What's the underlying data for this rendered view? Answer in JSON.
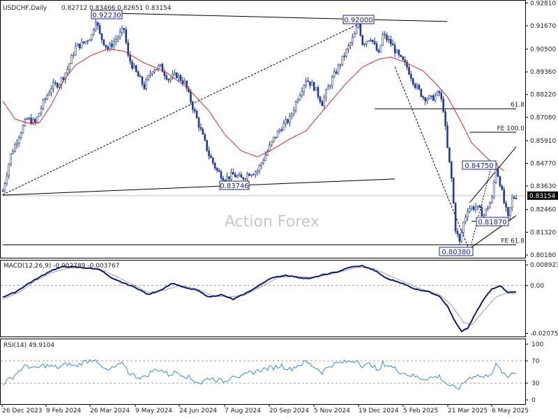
{
  "header": {
    "symbol": "USDCHF,Daily",
    "ohlc": "0.82712 0.83466 0.82651 0.83154"
  },
  "watermark": "Action Forex",
  "colors": {
    "candle": "#1f3a93",
    "ma": "#d42a2a",
    "macd": "#0d1a70",
    "signal": "#9e9e9e",
    "rsi": "#3f8ad6",
    "label_box": "#1a237e"
  },
  "chart_data": [
    {
      "type": "candlestick",
      "name": "price",
      "ylim": [
        0.8018,
        0.9282
      ],
      "y_ticks": [
        "0.92810",
        "0.91670",
        "0.90500",
        "0.89360",
        "0.88220",
        "0.87080",
        "0.85910",
        "0.84770",
        "0.83630",
        "0.82460",
        "0.81320",
        "0.80180"
      ],
      "x_ticks": [
        "26 Dec 2023",
        "9 Feb 2024",
        "26 Mar 2024",
        "9 May 2024",
        "24 Jun 2024",
        "7 Aug 2024",
        "20 Sep 2024",
        "5 Nov 2024",
        "19 Dec 2024",
        "5 Feb 2025",
        "21 Mar 2025",
        "6 May 2025"
      ],
      "last_price": "0.83154",
      "close_path": [
        [
          0,
          0.834
        ],
        [
          4,
          0.852
        ],
        [
          8,
          0.862
        ],
        [
          12,
          0.87
        ],
        [
          16,
          0.868
        ],
        [
          20,
          0.878
        ],
        [
          24,
          0.886
        ],
        [
          28,
          0.888
        ],
        [
          32,
          0.895
        ],
        [
          36,
          0.906
        ],
        [
          40,
          0.908
        ],
        [
          44,
          0.912
        ],
        [
          46,
          0.92
        ],
        [
          48,
          0.912
        ],
        [
          52,
          0.905
        ],
        [
          56,
          0.91
        ],
        [
          60,
          0.915
        ],
        [
          62,
          0.901
        ],
        [
          66,
          0.893
        ],
        [
          70,
          0.886
        ],
        [
          74,
          0.895
        ],
        [
          78,
          0.896
        ],
        [
          82,
          0.89
        ],
        [
          86,
          0.892
        ],
        [
          90,
          0.888
        ],
        [
          94,
          0.876
        ],
        [
          98,
          0.864
        ],
        [
          102,
          0.852
        ],
        [
          106,
          0.844
        ],
        [
          110,
          0.84
        ],
        [
          114,
          0.842
        ],
        [
          118,
          0.84
        ],
        [
          122,
          0.843
        ],
        [
          126,
          0.844
        ],
        [
          130,
          0.852
        ],
        [
          134,
          0.86
        ],
        [
          138,
          0.866
        ],
        [
          142,
          0.87
        ],
        [
          146,
          0.881
        ],
        [
          150,
          0.89
        ],
        [
          154,
          0.886
        ],
        [
          158,
          0.878
        ],
        [
          162,
          0.888
        ],
        [
          166,
          0.896
        ],
        [
          170,
          0.904
        ],
        [
          174,
          0.912
        ],
        [
          176,
          0.918
        ],
        [
          178,
          0.908
        ],
        [
          182,
          0.911
        ],
        [
          186,
          0.902
        ],
        [
          188,
          0.912
        ],
        [
          192,
          0.908
        ],
        [
          196,
          0.901
        ],
        [
          200,
          0.896
        ],
        [
          204,
          0.887
        ],
        [
          208,
          0.881
        ],
        [
          212,
          0.88
        ],
        [
          216,
          0.883
        ],
        [
          218,
          0.875
        ],
        [
          220,
          0.855
        ],
        [
          222,
          0.84
        ],
        [
          224,
          0.815
        ],
        [
          226,
          0.808
        ],
        [
          228,
          0.818
        ],
        [
          230,
          0.825
        ],
        [
          234,
          0.826
        ],
        [
          238,
          0.822
        ],
        [
          242,
          0.83
        ],
        [
          244,
          0.846
        ],
        [
          246,
          0.838
        ],
        [
          248,
          0.828
        ],
        [
          250,
          0.82
        ],
        [
          252,
          0.83
        ],
        [
          254,
          0.8315
        ]
      ],
      "ma_path": [
        [
          0,
          0.879
        ],
        [
          6,
          0.87
        ],
        [
          12,
          0.868
        ],
        [
          18,
          0.868
        ],
        [
          24,
          0.877
        ],
        [
          30,
          0.889
        ],
        [
          36,
          0.897
        ],
        [
          44,
          0.902
        ],
        [
          52,
          0.905
        ],
        [
          60,
          0.904
        ],
        [
          70,
          0.898
        ],
        [
          80,
          0.894
        ],
        [
          92,
          0.885
        ],
        [
          102,
          0.874
        ],
        [
          110,
          0.862
        ],
        [
          118,
          0.854
        ],
        [
          126,
          0.851
        ],
        [
          134,
          0.855
        ],
        [
          142,
          0.86
        ],
        [
          150,
          0.864
        ],
        [
          160,
          0.876
        ],
        [
          170,
          0.888
        ],
        [
          178,
          0.896
        ],
        [
          186,
          0.9
        ],
        [
          192,
          0.901
        ],
        [
          200,
          0.898
        ],
        [
          208,
          0.894
        ],
        [
          214,
          0.888
        ],
        [
          220,
          0.881
        ],
        [
          226,
          0.87
        ],
        [
          232,
          0.858
        ],
        [
          240,
          0.85
        ],
        [
          248,
          0.844
        ]
      ],
      "annotations": {
        "peak_2024": "0.92230",
        "peak_dec": "0.92000",
        "low_aug": "0.83746",
        "low_apr": "0.80380",
        "swing_high": "0.84750",
        "swing_low": "0.81870",
        "fib_618": "61.8",
        "fe_100": "FE 100.0",
        "fe_618": "FE 61.8"
      }
    },
    {
      "type": "line",
      "name": "MACD",
      "title": "MACD(12,26,9) -0.002789 -0.003767",
      "ylim": [
        -0.0212,
        0.0096
      ],
      "y_ticks": [
        "0.008923",
        "0.00",
        "-0.020759"
      ],
      "macd_path": [
        [
          0,
          -0.005
        ],
        [
          6,
          -0.003
        ],
        [
          12,
          0.0005
        ],
        [
          18,
          0.0035
        ],
        [
          24,
          0.0065
        ],
        [
          30,
          0.0082
        ],
        [
          36,
          0.008
        ],
        [
          42,
          0.0075
        ],
        [
          48,
          0.007
        ],
        [
          54,
          0.003
        ],
        [
          60,
          0.001
        ],
        [
          66,
          -0.001
        ],
        [
          72,
          -0.004
        ],
        [
          78,
          -0.002
        ],
        [
          84,
          0.001
        ],
        [
          90,
          -0.001
        ],
        [
          96,
          -0.002
        ],
        [
          102,
          -0.005
        ],
        [
          108,
          -0.004
        ],
        [
          114,
          -0.006
        ],
        [
          120,
          -0.0035
        ],
        [
          126,
          -0.0005
        ],
        [
          132,
          0.003
        ],
        [
          140,
          0.0045
        ],
        [
          146,
          0.0035
        ],
        [
          152,
          0.003
        ],
        [
          158,
          0.0045
        ],
        [
          166,
          0.006
        ],
        [
          172,
          0.008
        ],
        [
          178,
          0.0085
        ],
        [
          184,
          0.0065
        ],
        [
          190,
          0.003
        ],
        [
          196,
          0.0015
        ],
        [
          204,
          -0.0015
        ],
        [
          210,
          -0.0025
        ],
        [
          216,
          -0.0045
        ],
        [
          220,
          -0.009
        ],
        [
          224,
          -0.016
        ],
        [
          227,
          -0.02
        ],
        [
          230,
          -0.0185
        ],
        [
          234,
          -0.012
        ],
        [
          238,
          -0.006
        ],
        [
          242,
          -0.0015
        ],
        [
          246,
          0.0
        ],
        [
          250,
          -0.003
        ],
        [
          254,
          -0.0028
        ]
      ],
      "signal_path": [
        [
          0,
          -0.006
        ],
        [
          8,
          -0.003
        ],
        [
          16,
          0.002
        ],
        [
          24,
          0.0055
        ],
        [
          32,
          0.0075
        ],
        [
          40,
          0.0078
        ],
        [
          48,
          0.0072
        ],
        [
          56,
          0.004
        ],
        [
          64,
          0.0005
        ],
        [
          72,
          -0.003
        ],
        [
          80,
          -0.002
        ],
        [
          88,
          0.0
        ],
        [
          96,
          -0.0015
        ],
        [
          104,
          -0.0045
        ],
        [
          112,
          -0.005
        ],
        [
          120,
          -0.004
        ],
        [
          128,
          -0.0005
        ],
        [
          136,
          0.0035
        ],
        [
          144,
          0.004
        ],
        [
          152,
          0.0035
        ],
        [
          160,
          0.0045
        ],
        [
          168,
          0.0062
        ],
        [
          176,
          0.008
        ],
        [
          184,
          0.0072
        ],
        [
          192,
          0.004
        ],
        [
          200,
          0.001
        ],
        [
          208,
          -0.0018
        ],
        [
          216,
          -0.0038
        ],
        [
          222,
          -0.0085
        ],
        [
          228,
          -0.016
        ],
        [
          232,
          -0.017
        ],
        [
          238,
          -0.011
        ],
        [
          244,
          -0.005
        ],
        [
          250,
          -0.003
        ],
        [
          254,
          -0.0038
        ]
      ]
    },
    {
      "type": "line",
      "name": "RSI",
      "title": "RSI(14) 49.9104",
      "ylim": [
        0,
        100
      ],
      "y_ticks": [
        "100",
        "70",
        "30",
        "0"
      ],
      "levels": [
        70,
        30
      ],
      "rsi_path": [
        [
          0,
          30
        ],
        [
          4,
          38
        ],
        [
          8,
          52
        ],
        [
          12,
          62
        ],
        [
          16,
          55
        ],
        [
          20,
          62
        ],
        [
          24,
          60
        ],
        [
          28,
          58
        ],
        [
          32,
          65
        ],
        [
          36,
          60
        ],
        [
          40,
          68
        ],
        [
          44,
          72
        ],
        [
          46,
          75
        ],
        [
          48,
          60
        ],
        [
          52,
          52
        ],
        [
          56,
          60
        ],
        [
          60,
          65
        ],
        [
          62,
          50
        ],
        [
          66,
          42
        ],
        [
          70,
          40
        ],
        [
          74,
          52
        ],
        [
          78,
          55
        ],
        [
          82,
          45
        ],
        [
          86,
          50
        ],
        [
          90,
          44
        ],
        [
          94,
          36
        ],
        [
          98,
          30
        ],
        [
          102,
          40
        ],
        [
          106,
          36
        ],
        [
          110,
          33
        ],
        [
          114,
          46
        ],
        [
          118,
          40
        ],
        [
          122,
          48
        ],
        [
          126,
          52
        ],
        [
          130,
          56
        ],
        [
          134,
          58
        ],
        [
          138,
          62
        ],
        [
          142,
          55
        ],
        [
          146,
          62
        ],
        [
          150,
          68
        ],
        [
          154,
          60
        ],
        [
          158,
          50
        ],
        [
          162,
          62
        ],
        [
          166,
          66
        ],
        [
          170,
          68
        ],
        [
          174,
          70
        ],
        [
          176,
          72
        ],
        [
          178,
          58
        ],
        [
          182,
          66
        ],
        [
          186,
          50
        ],
        [
          188,
          66
        ],
        [
          192,
          60
        ],
        [
          196,
          52
        ],
        [
          200,
          46
        ],
        [
          204,
          42
        ],
        [
          208,
          38
        ],
        [
          212,
          40
        ],
        [
          216,
          42
        ],
        [
          218,
          35
        ],
        [
          220,
          28
        ],
        [
          222,
          24
        ],
        [
          224,
          20
        ],
        [
          226,
          22
        ],
        [
          228,
          30
        ],
        [
          230,
          38
        ],
        [
          234,
          45
        ],
        [
          238,
          40
        ],
        [
          242,
          50
        ],
        [
          244,
          62
        ],
        [
          246,
          55
        ],
        [
          248,
          45
        ],
        [
          250,
          40
        ],
        [
          252,
          50
        ],
        [
          254,
          49.9
        ]
      ]
    }
  ]
}
